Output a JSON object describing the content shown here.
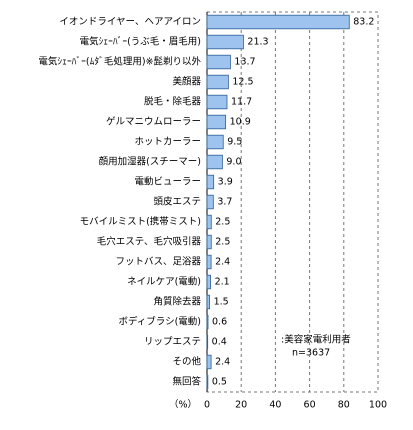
{
  "chart_data": {
    "type": "bar",
    "orientation": "horizontal",
    "categories": [
      "イオンドライヤー、ヘアアイロン",
      "電気ｼｪｰﾊﾞｰ(うぶ毛・眉毛用)",
      "電気ｼｪｰﾊﾞｰ(ﾑﾀﾞ毛処理用)※髭剃り以外",
      "美顔器",
      "脱毛・除毛器",
      "ゲルマニウムローラー",
      "ホットカーラー",
      "顔用加湿器(スチーマー)",
      "電動ビューラー",
      "頭皮エステ",
      "モバイルミスト(携帯ミスト)",
      "毛穴エステ、毛穴吸引器",
      "フットバス、足浴器",
      "ネイルケア(電動)",
      "角質除去器",
      "ボディブラシ(電動)",
      "リップエステ",
      "その他",
      "無回答"
    ],
    "values": [
      83.2,
      21.3,
      13.7,
      12.5,
      11.7,
      10.9,
      9.5,
      9.0,
      3.9,
      3.7,
      2.5,
      2.5,
      2.4,
      2.1,
      1.5,
      0.6,
      0.4,
      2.4,
      0.5
    ],
    "value_labels": [
      "83.2",
      "21.3",
      "13.7",
      "12.5",
      "11.7",
      "10.9",
      "9.5",
      "9.0",
      "3.9",
      "3.7",
      "2.5",
      "2.5",
      "2.4",
      "2.1",
      "1.5",
      "0.6",
      "0.4",
      "2.4",
      "0.5"
    ],
    "color": "#9dc3ee",
    "xlim": [
      0,
      100
    ],
    "xticks": [
      0,
      20,
      40,
      60,
      80,
      100
    ],
    "grid": true,
    "xlabel": "（%）",
    "annotations": [
      ":美容家電利用者",
      "n=3637"
    ]
  }
}
